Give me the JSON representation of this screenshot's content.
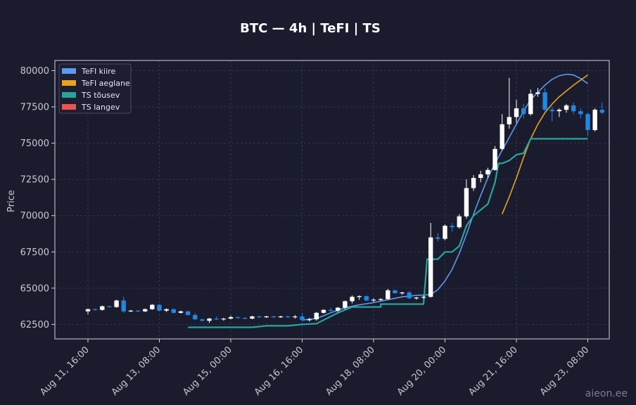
{
  "chart_data": {
    "type": "candlestick",
    "title": "BTC — 4h  |  TeFI  |  TS",
    "ylabel": "Price",
    "ylim": [
      61500,
      80700
    ],
    "yticks": [
      62500,
      65000,
      67500,
      70000,
      72500,
      75000,
      77500,
      80000
    ],
    "ytick_labels": [
      "62500",
      "65000",
      "67500",
      "70000",
      "72500",
      "75000",
      "77500",
      "80000"
    ],
    "x_start": "2025-08-11 16:00",
    "interval_hours": 4,
    "xticks": [
      {
        "index": 0,
        "label": "Aug 11, 16:00"
      },
      {
        "index": 10,
        "label": "Aug 13, 08:00"
      },
      {
        "index": 20,
        "label": "Aug 15, 00:00"
      },
      {
        "index": 30,
        "label": "Aug 16, 16:00"
      },
      {
        "index": 40,
        "label": "Aug 18, 08:00"
      },
      {
        "index": 50,
        "label": "Aug 20, 00:00"
      },
      {
        "index": 60,
        "label": "Aug 21, 16:00"
      },
      {
        "index": 70,
        "label": "Aug 23, 08:00"
      }
    ],
    "candles": [
      [
        63400,
        63600,
        63200,
        63550
      ],
      [
        63550,
        63600,
        63450,
        63500
      ],
      [
        63500,
        63800,
        63450,
        63750
      ],
      [
        63750,
        63800,
        63650,
        63700
      ],
      [
        63700,
        64200,
        63650,
        64150
      ],
      [
        64150,
        64400,
        63300,
        63400
      ],
      [
        63400,
        63500,
        63350,
        63450
      ],
      [
        63450,
        63500,
        63350,
        63400
      ],
      [
        63400,
        63600,
        63350,
        63550
      ],
      [
        63550,
        63900,
        63500,
        63850
      ],
      [
        63850,
        63900,
        63400,
        63450
      ],
      [
        63450,
        63600,
        63350,
        63550
      ],
      [
        63550,
        63600,
        63250,
        63300
      ],
      [
        63300,
        63450,
        63250,
        63400
      ],
      [
        63400,
        63450,
        63100,
        63150
      ],
      [
        63150,
        63300,
        62800,
        62850
      ],
      [
        62850,
        62900,
        62700,
        62750
      ],
      [
        62750,
        62950,
        62600,
        62900
      ],
      [
        62900,
        63050,
        62800,
        62850
      ],
      [
        62850,
        62950,
        62750,
        62900
      ],
      [
        62900,
        63100,
        62850,
        63000
      ],
      [
        63000,
        63050,
        62900,
        62950
      ],
      [
        62950,
        63000,
        62850,
        62900
      ],
      [
        62900,
        63100,
        62850,
        63050
      ],
      [
        63050,
        63100,
        62950,
        63000
      ],
      [
        63000,
        63100,
        62950,
        63050
      ],
      [
        63050,
        63100,
        62950,
        63000
      ],
      [
        63000,
        63100,
        62950,
        63050
      ],
      [
        63050,
        63100,
        62950,
        63000
      ],
      [
        63000,
        63150,
        62900,
        63050
      ],
      [
        63050,
        63300,
        62700,
        62800
      ],
      [
        62800,
        62950,
        62700,
        62850
      ],
      [
        62850,
        63350,
        62750,
        63300
      ],
      [
        63300,
        63550,
        63250,
        63500
      ],
      [
        63500,
        63650,
        63300,
        63450
      ],
      [
        63450,
        63700,
        63350,
        63650
      ],
      [
        63650,
        64150,
        63550,
        64100
      ],
      [
        64100,
        64500,
        63950,
        64400
      ],
      [
        64400,
        64500,
        64200,
        64450
      ],
      [
        64450,
        64500,
        64100,
        64150
      ],
      [
        64150,
        64300,
        64050,
        64200
      ],
      [
        64200,
        64300,
        64100,
        64250
      ],
      [
        64250,
        64950,
        64200,
        64850
      ],
      [
        64850,
        64900,
        64600,
        64650
      ],
      [
        64650,
        64750,
        64550,
        64700
      ],
      [
        64700,
        64800,
        64250,
        64300
      ],
      [
        64300,
        64400,
        64200,
        64350
      ],
      [
        64350,
        64500,
        64250,
        64400
      ],
      [
        64400,
        69500,
        64350,
        68500
      ],
      [
        68500,
        68800,
        68200,
        68400
      ],
      [
        68400,
        69400,
        68300,
        69300
      ],
      [
        69300,
        69500,
        68900,
        69200
      ],
      [
        69200,
        70100,
        69100,
        69950
      ],
      [
        69950,
        72500,
        69800,
        71900
      ],
      [
        71900,
        72800,
        71700,
        72600
      ],
      [
        72600,
        73100,
        72300,
        72850
      ],
      [
        72850,
        73300,
        72600,
        73150
      ],
      [
        73150,
        74800,
        73100,
        74600
      ],
      [
        74600,
        77000,
        74500,
        76300
      ],
      [
        76300,
        79500,
        76000,
        76800
      ],
      [
        76800,
        78000,
        76400,
        77400
      ],
      [
        77400,
        77700,
        76700,
        77000
      ],
      [
        77000,
        78700,
        76900,
        78400
      ],
      [
        78400,
        78800,
        78200,
        78500
      ],
      [
        78500,
        78800,
        77200,
        77300
      ],
      [
        77300,
        77500,
        76500,
        77200
      ],
      [
        77200,
        77400,
        76800,
        77300
      ],
      [
        77300,
        77700,
        77100,
        77600
      ],
      [
        77600,
        77800,
        77000,
        77200
      ],
      [
        77200,
        77400,
        76700,
        77000
      ],
      [
        77000,
        77100,
        75500,
        75900
      ],
      [
        75900,
        77400,
        75800,
        77300
      ],
      [
        77300,
        77800,
        77000,
        77100
      ]
    ],
    "series": [
      {
        "name": "TeFI kiire",
        "color": "#5b9bef",
        "points": [
          [
            30,
            62800
          ],
          [
            32,
            62900
          ],
          [
            34,
            63300
          ],
          [
            36,
            63650
          ],
          [
            38,
            63850
          ],
          [
            40,
            64000
          ],
          [
            42,
            64200
          ],
          [
            44,
            64400
          ],
          [
            46,
            64500
          ],
          [
            48,
            64550
          ],
          [
            49,
            64900
          ],
          [
            50,
            65500
          ],
          [
            51,
            66300
          ],
          [
            52,
            67400
          ],
          [
            53,
            68700
          ],
          [
            54,
            70100
          ],
          [
            55,
            71400
          ],
          [
            56,
            72600
          ],
          [
            57,
            73600
          ],
          [
            58,
            74500
          ],
          [
            59,
            75400
          ],
          [
            60,
            76300
          ],
          [
            61,
            77200
          ],
          [
            62,
            78000
          ],
          [
            63,
            78500
          ],
          [
            64,
            79000
          ],
          [
            65,
            79400
          ],
          [
            66,
            79650
          ],
          [
            67,
            79750
          ],
          [
            68,
            79700
          ],
          [
            69,
            79450
          ],
          [
            70,
            79100
          ]
        ]
      },
      {
        "name": "TeFI aeglane",
        "color": "#e8a317",
        "points": [
          [
            58,
            70100
          ],
          [
            59,
            71300
          ],
          [
            60,
            72600
          ],
          [
            61,
            74000
          ],
          [
            62,
            75300
          ],
          [
            63,
            76300
          ],
          [
            64,
            77100
          ],
          [
            65,
            77700
          ],
          [
            66,
            78200
          ],
          [
            67,
            78600
          ],
          [
            68,
            79000
          ],
          [
            69,
            79350
          ],
          [
            70,
            79700
          ]
        ]
      },
      {
        "name": "TS tõusev",
        "color": "#26a69a",
        "points": [
          [
            14,
            62300
          ],
          [
            18,
            62300
          ],
          [
            23,
            62300
          ],
          [
            25,
            62400
          ],
          [
            28,
            62400
          ],
          [
            30,
            62500
          ],
          [
            32,
            62550
          ],
          [
            33,
            62800
          ],
          [
            35,
            63300
          ],
          [
            37,
            63700
          ],
          [
            39,
            63700
          ],
          [
            41,
            63700
          ],
          [
            41,
            63900
          ],
          [
            43,
            63900
          ],
          [
            46,
            63900
          ],
          [
            47,
            63900
          ],
          [
            47.5,
            67000
          ],
          [
            49,
            67000
          ],
          [
            50,
            67500
          ],
          [
            51,
            67500
          ],
          [
            52,
            67900
          ],
          [
            53,
            69300
          ],
          [
            54,
            70000
          ],
          [
            55,
            70400
          ],
          [
            56,
            70800
          ],
          [
            57,
            72300
          ],
          [
            57.5,
            73600
          ],
          [
            58,
            73600
          ],
          [
            59,
            73800
          ],
          [
            60,
            74200
          ],
          [
            61,
            74300
          ],
          [
            62,
            75300
          ],
          [
            64,
            75300
          ],
          [
            66,
            75300
          ],
          [
            68,
            75300
          ],
          [
            70,
            75300
          ]
        ]
      },
      {
        "name": "TS langev",
        "color": "#ef5350",
        "points": []
      }
    ],
    "candle_up_color": "#ffffff",
    "candle_down_color": "#1e88e5",
    "legend_position": "top-left",
    "grid": true
  },
  "watermark": "aieon.ee"
}
